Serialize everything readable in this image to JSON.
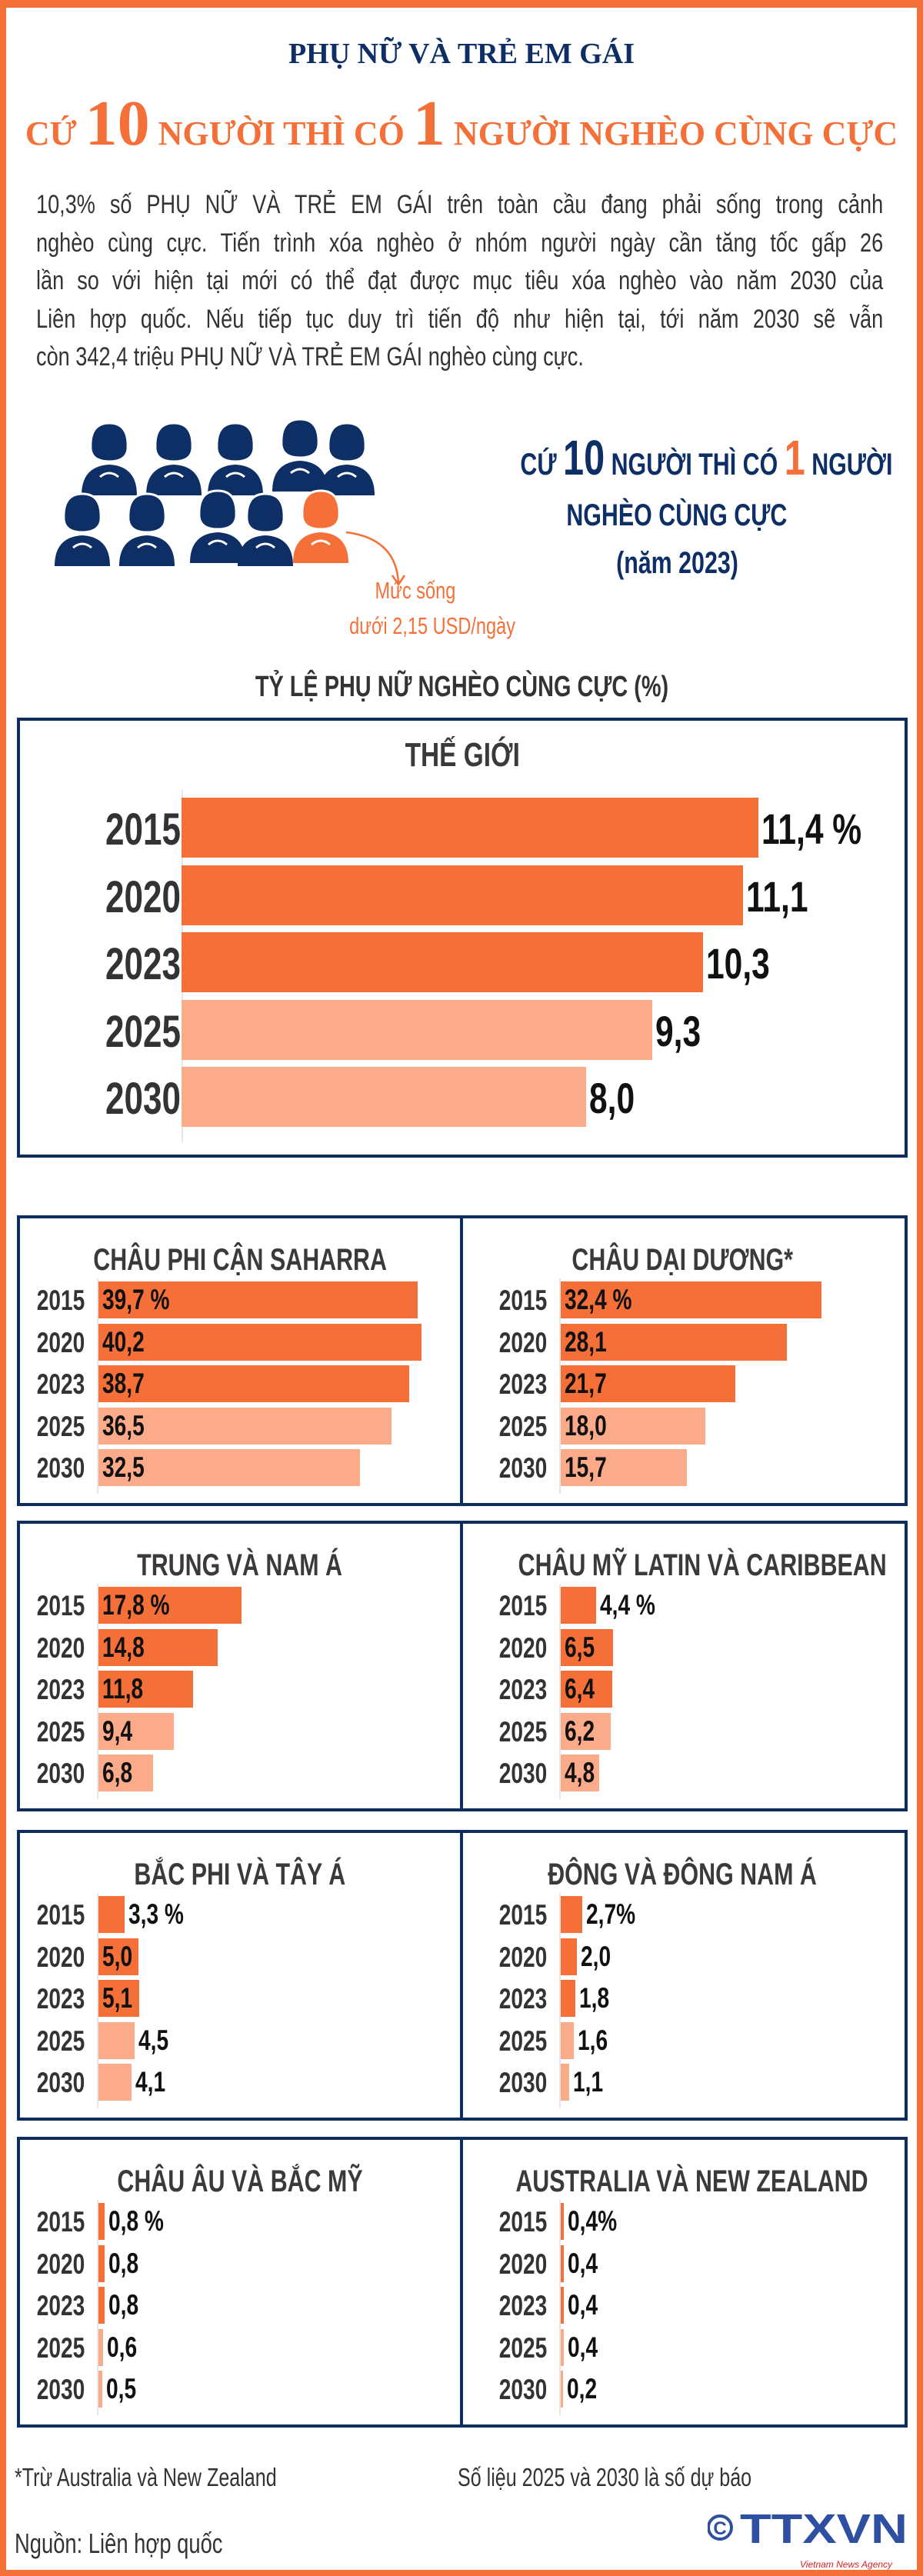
{
  "header": {
    "title": "PHỤ NỮ VÀ TRẺ EM GÁI",
    "subtitle_parts": [
      "CỨ ",
      "10",
      " NGƯỜI THÌ CÓ ",
      "1",
      " NGƯỜI NGHÈO CÙNG CỰC"
    ]
  },
  "intro_lines": [
    "10,3% số PHỤ NỮ VÀ TRẺ EM GÁI trên toàn cầu đang phải sống trong cảnh",
    "nghèo cùng cực. Tiến trình xóa nghèo ở nhóm người ngày cần tăng tốc gấp 26",
    "lần so với hiện tại mới có thể đạt được mục tiêu xóa nghèo vào năm 2030 của",
    "Liên hợp quốc. Nếu tiếp tục duy trì tiến độ như hiện tại, tới năm 2030 sẽ vẫn",
    "còn 342,4 triệu PHỤ NỮ VÀ TRẺ EM GÁI nghèo cùng cực."
  ],
  "illustration": {
    "icon": "women-group-icon",
    "people_total": 10,
    "poor_count": 1,
    "living_line1": "Mức sống",
    "living_line2": "dưới 2,15 USD/ngày",
    "side_parts": [
      "CỨ ",
      "10",
      " NGƯỜI THÌ CÓ ",
      "1",
      " NGƯỜI"
    ],
    "side_line2": "NGHÈO CÙNG CỰC",
    "side_line3": "(năm 2023)"
  },
  "section_title": "TỶ LỆ PHỤ NỮ NGHÈO CÙNG CỰC (%)",
  "colors": {
    "actual": "#F47038",
    "forecast": "#FBAB8A",
    "navy": "#0D2D5C",
    "frame": "#F47038"
  },
  "chart_data": [
    {
      "type": "bar",
      "orientation": "horizontal",
      "title": "THẾ GIỚI",
      "categories": [
        "2015",
        "2020",
        "2023",
        "2025",
        "2030"
      ],
      "values": [
        11.4,
        11.1,
        10.3,
        9.3,
        8.0
      ],
      "labels": [
        "11,4 %",
        "11,1",
        "10,3",
        "9,3",
        "8,0"
      ],
      "forecast": [
        false,
        false,
        false,
        true,
        true
      ]
    },
    {
      "type": "bar",
      "orientation": "horizontal",
      "title": "CHÂU PHI CẬN SAHARRA",
      "categories": [
        "2015",
        "2020",
        "2023",
        "2025",
        "2030"
      ],
      "values": [
        39.7,
        40.2,
        38.7,
        36.5,
        32.5
      ],
      "labels": [
        "39,7 %",
        "40,2",
        "38,7",
        "36,5",
        "32,5"
      ],
      "forecast": [
        false,
        false,
        false,
        true,
        true
      ]
    },
    {
      "type": "bar",
      "orientation": "horizontal",
      "title": "CHÂU DẠI DƯƠNG*",
      "categories": [
        "2015",
        "2020",
        "2023",
        "2025",
        "2030"
      ],
      "values": [
        32.4,
        28.1,
        21.7,
        18.0,
        15.7
      ],
      "labels": [
        "32,4 %",
        "28,1",
        "21,7",
        "18,0",
        "15,7"
      ],
      "forecast": [
        false,
        false,
        false,
        true,
        true
      ]
    },
    {
      "type": "bar",
      "orientation": "horizontal",
      "title": "TRUNG VÀ NAM Á",
      "categories": [
        "2015",
        "2020",
        "2023",
        "2025",
        "2030"
      ],
      "values": [
        17.8,
        14.8,
        11.8,
        9.4,
        6.8
      ],
      "labels": [
        "17,8 %",
        "14,8",
        "11,8",
        "9,4",
        "6,8"
      ],
      "forecast": [
        false,
        false,
        false,
        true,
        true
      ]
    },
    {
      "type": "bar",
      "orientation": "horizontal",
      "title": "CHÂU MỸ LATIN VÀ CARIBBEAN",
      "categories": [
        "2015",
        "2020",
        "2023",
        "2025",
        "2030"
      ],
      "values": [
        4.4,
        6.5,
        6.4,
        6.2,
        4.8
      ],
      "labels": [
        "4,4 %",
        "6,5",
        "6,4",
        "6,2",
        "4,8"
      ],
      "forecast": [
        false,
        false,
        false,
        true,
        true
      ]
    },
    {
      "type": "bar",
      "orientation": "horizontal",
      "title": "BẮC PHI VÀ TÂY Á",
      "categories": [
        "2015",
        "2020",
        "2023",
        "2025",
        "2030"
      ],
      "values": [
        3.3,
        5.0,
        5.1,
        4.5,
        4.1
      ],
      "labels": [
        "3,3 %",
        "5,0",
        "5,1",
        "4,5",
        "4,1"
      ],
      "forecast": [
        false,
        false,
        false,
        true,
        true
      ]
    },
    {
      "type": "bar",
      "orientation": "horizontal",
      "title": "ĐÔNG VÀ ĐÔNG NAM Á",
      "categories": [
        "2015",
        "2020",
        "2023",
        "2025",
        "2030"
      ],
      "values": [
        2.7,
        2.0,
        1.8,
        1.6,
        1.1
      ],
      "labels": [
        "2,7%",
        "2,0",
        "1,8",
        "1,6",
        "1,1"
      ],
      "forecast": [
        false,
        false,
        false,
        true,
        true
      ]
    },
    {
      "type": "bar",
      "orientation": "horizontal",
      "title": "CHÂU ÂU VÀ BẮC MỸ",
      "categories": [
        "2015",
        "2020",
        "2023",
        "2025",
        "2030"
      ],
      "values": [
        0.8,
        0.8,
        0.8,
        0.6,
        0.5
      ],
      "labels": [
        "0,8 %",
        "0,8",
        "0,8",
        "0,6",
        "0,5"
      ],
      "forecast": [
        false,
        false,
        false,
        true,
        true
      ]
    },
    {
      "type": "bar",
      "orientation": "horizontal",
      "title": "AUSTRALIA VÀ NEW ZEALAND",
      "categories": [
        "2015",
        "2020",
        "2023",
        "2025",
        "2030"
      ],
      "values": [
        0.4,
        0.4,
        0.4,
        0.4,
        0.2
      ],
      "labels": [
        "0,4%",
        "0,4",
        "0,4",
        "0,4",
        "0,2"
      ],
      "forecast": [
        false,
        false,
        false,
        true,
        true
      ]
    }
  ],
  "footer": {
    "note": "*Trừ Australia và New Zealand",
    "forecast_note": "Số liệu 2025 và 2030 là số dự báo",
    "source": "Nguồn: Liên hợp quốc",
    "logo_text": "TTXVN",
    "logo_tagline": "Vietnam News Agency",
    "copyright_icon": "copyright-icon"
  }
}
